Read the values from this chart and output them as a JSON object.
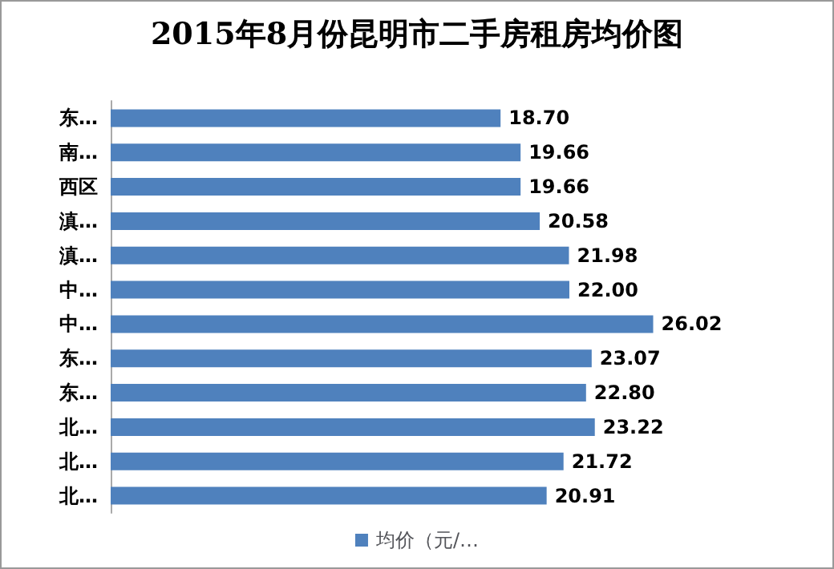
{
  "chart_data": {
    "type": "bar",
    "orientation": "horizontal",
    "title": "2015年8月份昆明市二手房租房均价图",
    "categories": [
      "东…",
      "南…",
      "西区",
      "滇…",
      "滇…",
      "中…",
      "中…",
      "东…",
      "东…",
      "北…",
      "北…",
      "北…"
    ],
    "series": [
      {
        "name": "均价（元/…",
        "color": "#4f81bd",
        "values": [
          18.7,
          19.66,
          19.66,
          20.58,
          21.98,
          22.0,
          26.02,
          23.07,
          22.8,
          23.22,
          21.72,
          20.91
        ],
        "value_labels": [
          "18.70",
          "19.66",
          "19.66",
          "20.58",
          "21.98",
          "22.00",
          "26.02",
          "23.07",
          "22.80",
          "23.22",
          "21.72",
          "20.91"
        ]
      }
    ],
    "legend": "bottom"
  }
}
